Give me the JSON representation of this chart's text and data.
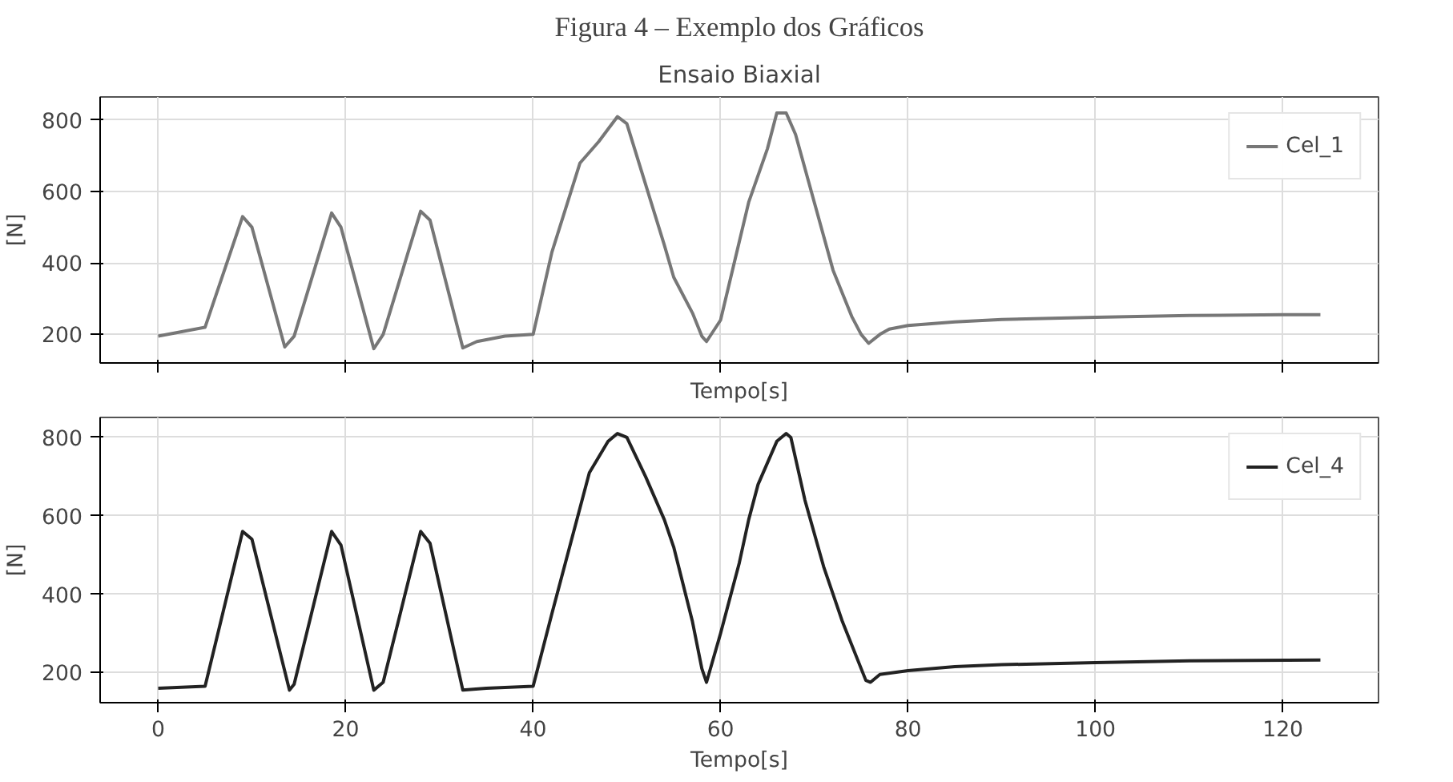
{
  "chart_data": [
    {
      "type": "line",
      "title": "Ensaio Biaxial",
      "xlabel": "Tempo[s]",
      "ylabel": "[N]",
      "annotations": [
        "Figura 4 – Exemplo dos Gráficos"
      ],
      "xlim": [
        -6.2,
        130.2
      ],
      "ylim": [
        120,
        865
      ],
      "xticks": [
        0,
        20,
        40,
        60,
        80,
        100,
        120
      ],
      "yticks": [
        200,
        400,
        600,
        800
      ],
      "tick_labels": "y",
      "grid": true,
      "legend": "top right",
      "line_style": "solid",
      "marker": "none",
      "x": [
        0,
        5,
        9,
        10,
        13.5,
        14.5,
        18.5,
        19.5,
        23,
        24,
        28,
        29,
        32.5,
        34,
        37,
        40,
        42,
        45,
        47,
        49,
        50,
        52,
        54,
        55,
        57,
        58,
        58.5,
        60,
        62,
        63,
        65,
        66,
        67,
        68,
        70,
        72,
        74,
        75,
        75.8,
        77,
        78,
        80,
        85,
        90,
        100,
        110,
        120,
        124
      ],
      "series": [
        {
          "name": "Cel_1",
          "color": "#777777",
          "values": [
            195,
            220,
            530,
            500,
            165,
            195,
            540,
            500,
            160,
            200,
            545,
            520,
            162,
            180,
            195,
            200,
            430,
            680,
            740,
            810,
            790,
            620,
            450,
            360,
            260,
            195,
            180,
            240,
            460,
            570,
            720,
            820,
            820,
            760,
            570,
            380,
            250,
            200,
            175,
            200,
            215,
            225,
            235,
            242,
            248,
            253,
            255,
            255
          ]
        }
      ]
    },
    {
      "type": "line",
      "xlabel": "Tempo[s]",
      "ylabel": "[N]",
      "xlim": [
        -6.2,
        130.2
      ],
      "ylim": [
        123,
        851
      ],
      "xticks": [
        0,
        20,
        40,
        60,
        80,
        100,
        120
      ],
      "yticks": [
        200,
        400,
        600,
        800
      ],
      "grid": true,
      "legend": "top right",
      "line_style": "solid",
      "marker": "none",
      "x": [
        0,
        5,
        9,
        10,
        14,
        14.5,
        18.5,
        19.5,
        23,
        24,
        28,
        29,
        32.5,
        35,
        40,
        42,
        45,
        46,
        48,
        49,
        50,
        52,
        54,
        55,
        57,
        58,
        58.5,
        60,
        62,
        63,
        64,
        66,
        67,
        67.5,
        69,
        71,
        73,
        75.5,
        76,
        77,
        80,
        85,
        90,
        100,
        110,
        124
      ],
      "series": [
        {
          "name": "Cel_4",
          "color": "#222222",
          "values": [
            160,
            165,
            560,
            540,
            155,
            170,
            560,
            525,
            155,
            175,
            560,
            530,
            155,
            160,
            165,
            350,
            620,
            710,
            790,
            810,
            800,
            700,
            590,
            520,
            330,
            210,
            175,
            300,
            480,
            590,
            680,
            790,
            810,
            800,
            640,
            470,
            330,
            180,
            175,
            195,
            205,
            215,
            220,
            225,
            230,
            232
          ]
        }
      ]
    }
  ]
}
